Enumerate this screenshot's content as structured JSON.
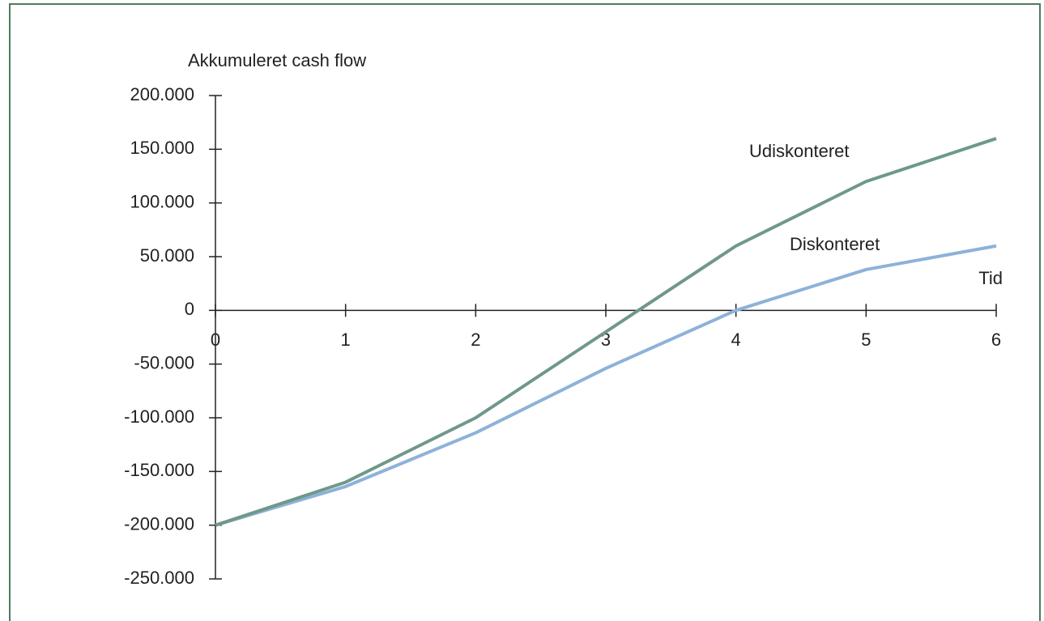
{
  "chart_data": {
    "type": "line",
    "y_label": "Akkumuleret cash flow",
    "x_label": "Tid",
    "x": [
      0,
      1,
      2,
      3,
      4,
      5,
      6
    ],
    "xlim": [
      0,
      6
    ],
    "xticks": [
      0,
      1,
      2,
      3,
      4,
      5,
      6
    ],
    "ylim": [
      -250000,
      200000
    ],
    "yticks": [
      {
        "value": -250000,
        "label": "-250.000"
      },
      {
        "value": -200000,
        "label": "-200.000"
      },
      {
        "value": -150000,
        "label": "-150.000"
      },
      {
        "value": -100000,
        "label": "-100.000"
      },
      {
        "value": -50000,
        "label": "-50.000"
      },
      0,
      {
        "value": 50000,
        "label": "50.000"
      },
      {
        "value": 100000,
        "label": "100.000"
      },
      {
        "value": 150000,
        "label": "150.000"
      },
      {
        "value": 200000,
        "label": "200.000"
      }
    ],
    "series": [
      {
        "name": "Udiskonteret",
        "color": "#6f9889",
        "values": [
          -200000,
          -160000,
          -100000,
          -20000,
          60000,
          120000,
          160000
        ]
      },
      {
        "name": "Diskonteret",
        "color": "#8db2d8",
        "values": [
          -200000,
          -164000,
          -114000,
          -54000,
          0,
          38000,
          60000
        ]
      }
    ]
  }
}
